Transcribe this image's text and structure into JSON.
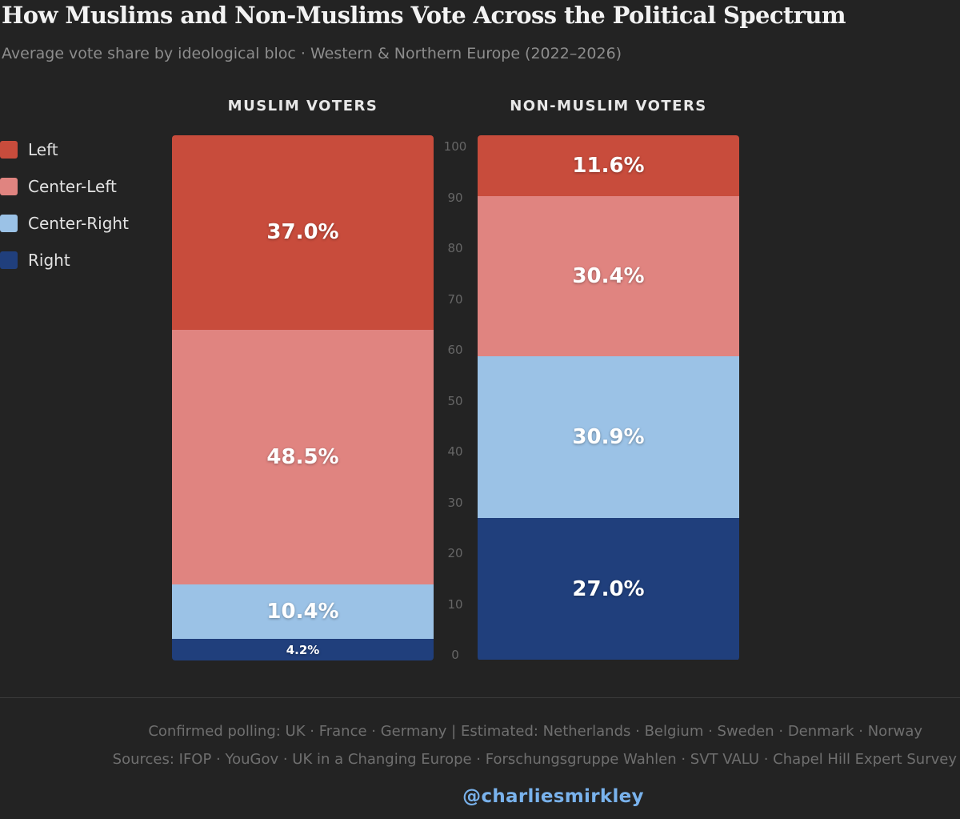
{
  "header": {
    "title": "How Muslims and Non-Muslims Vote Across the Political Spectrum",
    "subtitle": "Average vote share by ideological bloc · Western & Northern Europe (2022–2026)"
  },
  "legend": [
    {
      "label": "Left",
      "color": "#c84c3c"
    },
    {
      "label": "Center-Left",
      "color": "#e08480"
    },
    {
      "label": "Center-Right",
      "color": "#9bc2e6"
    },
    {
      "label": "Right",
      "color": "#203f7c"
    }
  ],
  "chart_data": {
    "type": "bar",
    "stacked": true,
    "title": "How Muslims and Non-Muslims Vote Across the Political Spectrum",
    "subtitle": "Average vote share by ideological bloc · Western & Northern Europe (2022–2026)",
    "categories": [
      "MUSLIM VOTERS",
      "NON-MUSLIM VOTERS"
    ],
    "series": [
      {
        "name": "Left",
        "color": "#c84c3c",
        "values": [
          37.0,
          11.6
        ],
        "labels": [
          "37.0%",
          "11.6%"
        ]
      },
      {
        "name": "Center-Left",
        "color": "#e08480",
        "values": [
          48.5,
          30.4
        ],
        "labels": [
          "48.5%",
          "30.4%"
        ]
      },
      {
        "name": "Center-Right",
        "color": "#9bc2e6",
        "values": [
          10.4,
          30.9
        ],
        "labels": [
          "10.4%",
          "30.9%"
        ]
      },
      {
        "name": "Right",
        "color": "#203f7c",
        "values": [
          4.2,
          27.0
        ],
        "labels": [
          "4.2%",
          "27.0%"
        ]
      }
    ],
    "ylim": [
      0,
      100
    ],
    "yticks": [
      "0",
      "10",
      "20",
      "30",
      "40",
      "50",
      "60",
      "70",
      "80",
      "90",
      "100"
    ],
    "xlabel": "",
    "ylabel": "",
    "legend_position": "left"
  },
  "footer": {
    "note": "Confirmed polling: UK · France · Germany  |  Estimated: Netherlands · Belgium · Sweden · Denmark · Norway",
    "sources": "Sources: IFOP · YouGov · UK in a Changing Europe · Forschungsgruppe Wahlen · SVT VALU · Chapel Hill Expert Survey",
    "handle": "@charliesmirkley"
  }
}
